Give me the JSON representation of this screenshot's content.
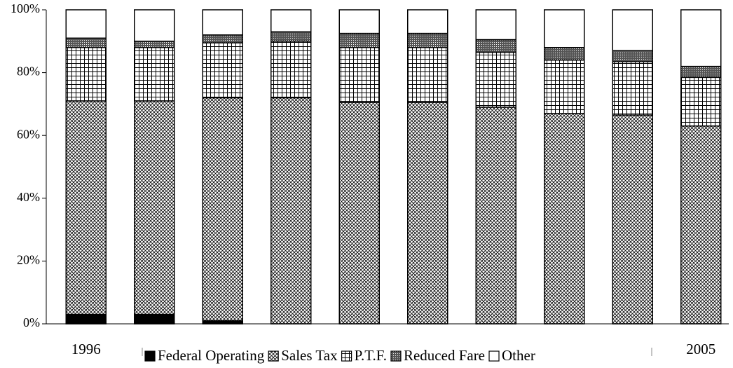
{
  "chart_data": {
    "type": "stacked_bar_100",
    "categories": [
      "1996",
      null,
      null,
      null,
      null,
      null,
      null,
      null,
      null,
      "2005"
    ],
    "series": [
      {
        "name": "Federal Operating",
        "color": "#000000",
        "values": [
          3,
          3,
          1,
          0,
          0,
          0,
          0,
          0,
          0,
          0
        ]
      },
      {
        "name": "Sales Tax",
        "color": "#000000",
        "values": [
          68,
          68,
          71,
          72,
          70.5,
          70.5,
          69,
          67,
          66.5,
          63
        ]
      },
      {
        "name": "P.T.F.",
        "color": "#000000",
        "values": [
          17,
          17,
          17.5,
          18,
          17.5,
          17.5,
          17.5,
          17,
          17,
          15.5
        ]
      },
      {
        "name": "Reduced Fare",
        "color": "#000000",
        "values": [
          3,
          2,
          2.5,
          3,
          4.5,
          4.5,
          4,
          4,
          3.5,
          3.5
        ]
      },
      {
        "name": "Other",
        "color": "#ffffff",
        "values": [
          9,
          10,
          8,
          7,
          7.5,
          7.5,
          9.5,
          12,
          13,
          18
        ]
      }
    ],
    "ylim": [
      0,
      100
    ],
    "yticks": [
      {
        "value": 0,
        "label": "0%"
      },
      {
        "value": 20,
        "label": "20%"
      },
      {
        "value": 40,
        "label": "40%"
      },
      {
        "value": 60,
        "label": "60%"
      },
      {
        "value": 80,
        "label": "80%"
      },
      {
        "value": 100,
        "label": "100%"
      }
    ],
    "grid": false,
    "legend": "bottom"
  }
}
